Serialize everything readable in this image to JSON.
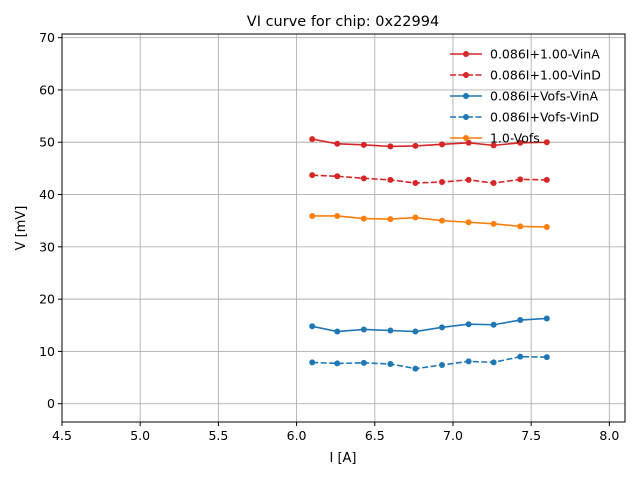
{
  "chart_data": {
    "type": "line",
    "title": "VI curve for chip: 0x22994",
    "xlabel": "I [A]",
    "ylabel": "V [mV]",
    "xlim": [
      4.5,
      8.1
    ],
    "ylim": [
      -3.5,
      70.7
    ],
    "xticks": [
      4.5,
      5.0,
      5.5,
      6.0,
      6.5,
      7.0,
      7.5,
      8.0
    ],
    "xtick_labels": [
      "4.5",
      "5.0",
      "5.5",
      "6.0",
      "6.5",
      "7.0",
      "7.5",
      "8.0"
    ],
    "yticks": [
      0,
      10,
      20,
      30,
      40,
      50,
      60,
      70
    ],
    "ytick_labels": [
      "0",
      "10",
      "20",
      "30",
      "40",
      "50",
      "60",
      "70"
    ],
    "grid": true,
    "legend_position": "top-right",
    "x": [
      6.1,
      6.26,
      6.43,
      6.6,
      6.76,
      6.93,
      7.1,
      7.26,
      7.43,
      7.6
    ],
    "series": [
      {
        "name": "0.086I+1.00-VinA",
        "color": "#d62728",
        "linestyle": "solid",
        "values": [
          50.6,
          49.7,
          49.5,
          49.2,
          49.3,
          49.6,
          49.9,
          49.4,
          49.9,
          50.0
        ]
      },
      {
        "name": "0.086I+1.00-VinD",
        "color": "#d62728",
        "linestyle": "dashed",
        "values": [
          43.7,
          43.5,
          43.1,
          42.8,
          42.2,
          42.4,
          42.8,
          42.2,
          42.9,
          42.8
        ]
      },
      {
        "name": "0.086I+Vofs-VinA",
        "color": "#1f77b4",
        "linestyle": "solid",
        "values": [
          14.8,
          13.8,
          14.2,
          14.0,
          13.8,
          14.6,
          15.2,
          15.1,
          16.0,
          16.3
        ]
      },
      {
        "name": "0.086I+Vofs-VinD",
        "color": "#1f77b4",
        "linestyle": "dashed",
        "values": [
          7.9,
          7.7,
          7.8,
          7.6,
          6.7,
          7.4,
          8.1,
          7.9,
          9.0,
          8.9
        ]
      },
      {
        "name": "1.0-Vofs",
        "color": "#ff7f0e",
        "linestyle": "solid",
        "values": [
          35.9,
          35.9,
          35.4,
          35.3,
          35.6,
          35.0,
          34.7,
          34.4,
          33.9,
          33.8
        ]
      }
    ]
  }
}
